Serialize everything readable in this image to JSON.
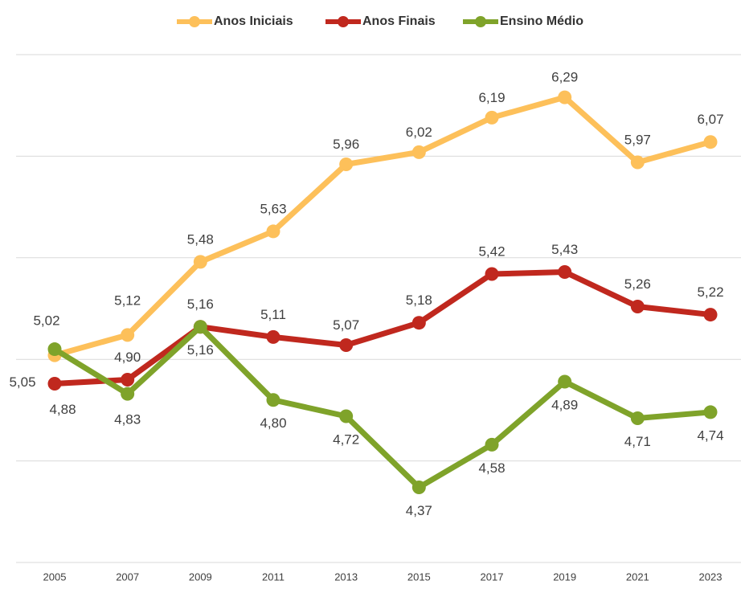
{
  "chart_data": {
    "type": "line",
    "categories": [
      "2005",
      "2007",
      "2009",
      "2011",
      "2013",
      "2015",
      "2017",
      "2019",
      "2021",
      "2023"
    ],
    "ylim": [
      4,
      6.5
    ],
    "yticks": [
      4,
      4.5,
      5,
      5.5,
      6,
      6.5
    ],
    "grid": true,
    "legend": "top",
    "series": [
      {
        "name": "Anos Iniciais",
        "color": "#fdc05a",
        "values": [
          5.02,
          5.12,
          5.48,
          5.63,
          5.96,
          6.02,
          6.19,
          6.29,
          5.97,
          6.07
        ],
        "value_labels": [
          "5,02",
          "5,12",
          "5,48",
          "5,63",
          "5,96",
          "6,02",
          "6,19",
          "6,29",
          "5,97",
          "6,07"
        ]
      },
      {
        "name": "Anos Finais",
        "color": "#c0281e",
        "values": [
          4.88,
          4.9,
          5.16,
          5.11,
          5.07,
          5.18,
          5.42,
          5.43,
          5.26,
          5.22
        ],
        "value_labels": [
          "4,88",
          "4,90",
          "5,16",
          "5,11",
          "5,07",
          "5,18",
          "5,42",
          "5,43",
          "5,26",
          "5,22"
        ]
      },
      {
        "name": "Ensino Médio",
        "color": "#7fa32a",
        "values": [
          5.05,
          4.83,
          5.16,
          4.8,
          4.72,
          4.37,
          4.58,
          4.89,
          4.71,
          4.74
        ],
        "value_labels": [
          "5,05",
          "4,83",
          "5,16",
          "4,80",
          "4,72",
          "4,37",
          "4,58",
          "4,89",
          "4,71",
          "4,74"
        ]
      }
    ]
  }
}
